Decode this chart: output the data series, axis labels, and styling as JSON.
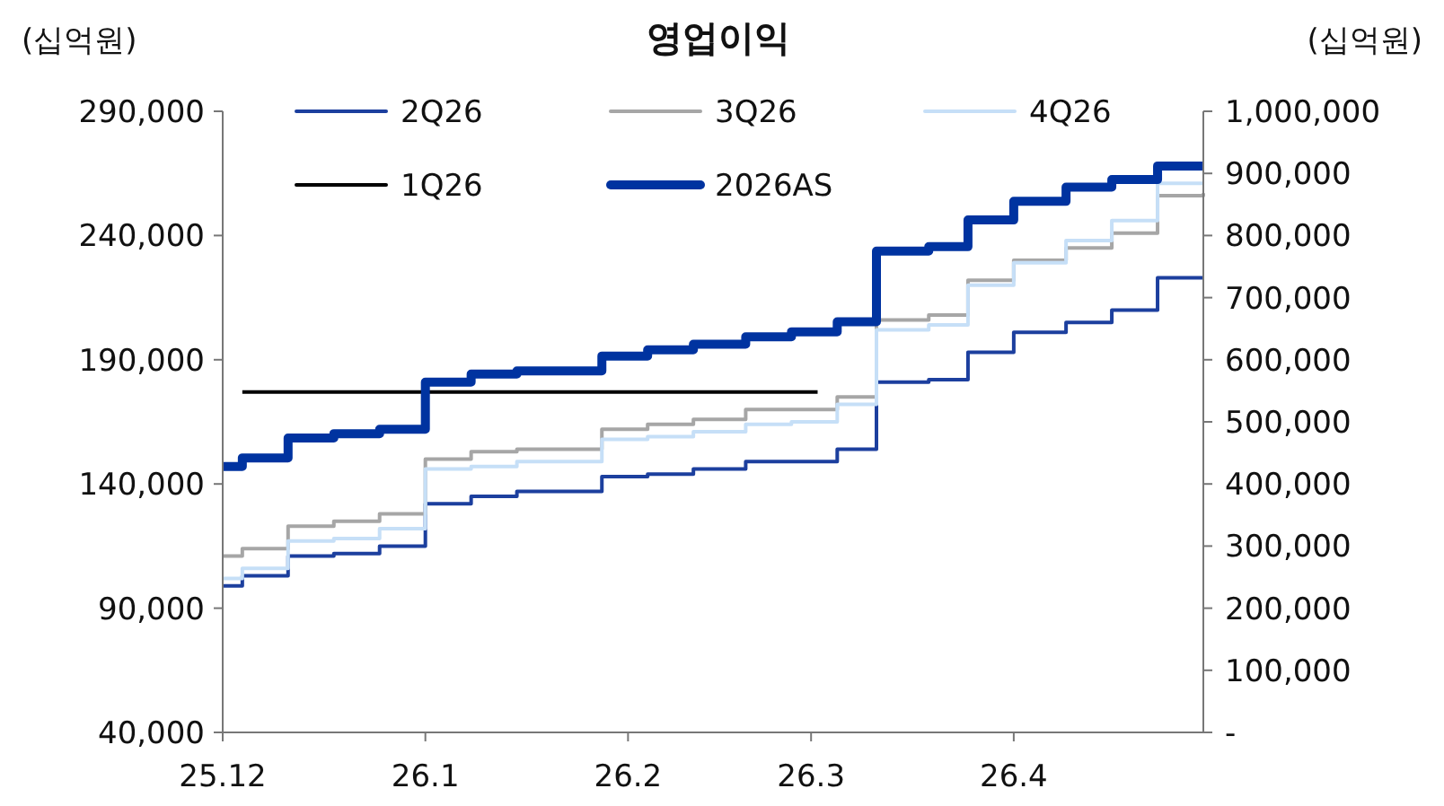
{
  "chart_data": {
    "type": "step",
    "title": "영업이익",
    "ylabel": "(십억원)",
    "y2label": "(십억원)",
    "x": [
      "2025-12-01",
      "2025-12-04",
      "2025-12-11",
      "2025-12-18",
      "2025-12-25",
      "2026-01-01",
      "2026-01-08",
      "2026-01-15",
      "2026-01-28",
      "2026-02-04",
      "2026-02-11",
      "2026-02-19",
      "2026-02-26",
      "2026-03-05",
      "2026-03-11",
      "2026-03-19",
      "2026-03-25",
      "2026-04-01",
      "2026-04-09",
      "2026-04-16",
      "2026-04-23",
      "2026-04-30"
    ],
    "series": [
      {
        "name": "2Q26",
        "color": "#1c3f9e",
        "values": [
          99000,
          103000,
          111000,
          112000,
          115000,
          132000,
          135000,
          137000,
          143000,
          144000,
          146000,
          149000,
          149000,
          154000,
          181000,
          182000,
          193000,
          201000,
          205000,
          210000,
          223000,
          223000
        ]
      },
      {
        "name": "3Q26",
        "color": "#a6a6a6",
        "values": [
          111000,
          114000,
          123000,
          125000,
          128000,
          150000,
          153000,
          154000,
          162000,
          164000,
          166000,
          170000,
          170000,
          175000,
          206000,
          208000,
          222000,
          230000,
          235000,
          241000,
          256000,
          257000
        ]
      },
      {
        "name": "4Q26",
        "color": "#c6dff7",
        "values": [
          102000,
          106000,
          117000,
          118000,
          122000,
          146000,
          147000,
          149000,
          158000,
          159000,
          161000,
          164000,
          165000,
          172000,
          202000,
          204000,
          220000,
          229000,
          238000,
          246000,
          261000,
          261000
        ]
      },
      {
        "name": "1Q26",
        "color": "#000000",
        "x": [
          "2025-12-04",
          "2026-03-02"
        ],
        "values": [
          177000,
          177000
        ]
      },
      {
        "name": "2026AS",
        "color": "#0033a0",
        "axis": "y2",
        "values": [
          428000,
          442000,
          474000,
          481000,
          488000,
          564000,
          577000,
          582000,
          606000,
          616000,
          625000,
          637000,
          645000,
          661000,
          775000,
          782000,
          825000,
          855000,
          878000,
          890000,
          912000,
          912000
        ]
      }
    ],
    "xlim": [
      "2025-12-01",
      "2026-04-30"
    ],
    "xticks": [
      {
        "value": "2025-12-01",
        "label": "25.12"
      },
      {
        "value": "2026-01-01",
        "label": "26.1"
      },
      {
        "value": "2026-02-01",
        "label": "26.2"
      },
      {
        "value": "2026-03-01",
        "label": "26.3"
      },
      {
        "value": "2026-04-01",
        "label": "26.4"
      }
    ],
    "ylim": [
      40000,
      290000
    ],
    "yticks": [
      {
        "value": 40000,
        "label": "40,000"
      },
      {
        "value": 90000,
        "label": "90,000"
      },
      {
        "value": 140000,
        "label": "140,000"
      },
      {
        "value": 190000,
        "label": "190,000"
      },
      {
        "value": 240000,
        "label": "240,000"
      },
      {
        "value": 290000,
        "label": "290,000"
      }
    ],
    "y2lim": [
      0,
      1000000
    ],
    "y2ticks": [
      {
        "value": 0,
        "label": "-"
      },
      {
        "value": 100000,
        "label": "100,000"
      },
      {
        "value": 200000,
        "label": "200,000"
      },
      {
        "value": 300000,
        "label": "300,000"
      },
      {
        "value": 400000,
        "label": "400,000"
      },
      {
        "value": 500000,
        "label": "500,000"
      },
      {
        "value": 600000,
        "label": "600,000"
      },
      {
        "value": 700000,
        "label": "700,000"
      },
      {
        "value": 800000,
        "label": "800,000"
      },
      {
        "value": 900000,
        "label": "900,000"
      },
      {
        "value": 1000000,
        "label": "1,000,000"
      }
    ],
    "grid": false,
    "legend": "top",
    "marker": "none",
    "line_style": "solid"
  }
}
